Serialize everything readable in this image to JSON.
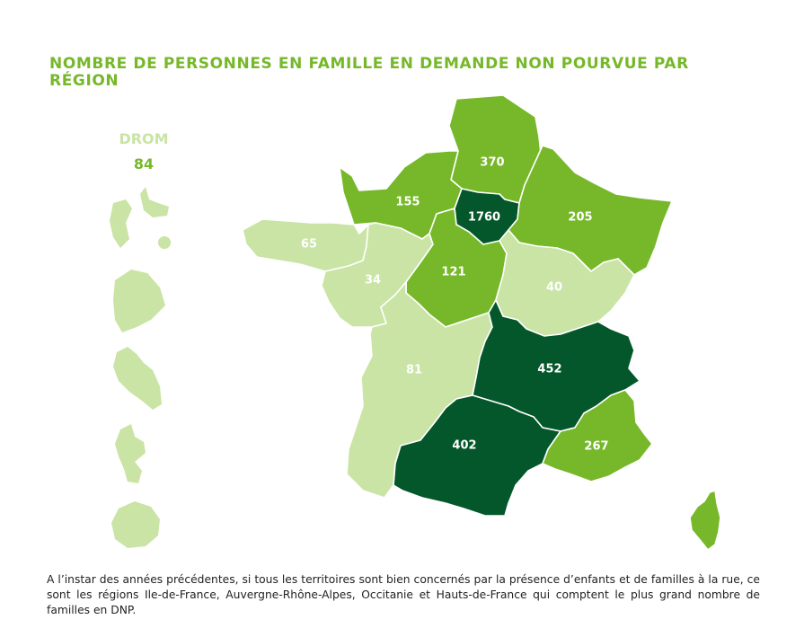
{
  "title": "Nombre de personnes en famille en demande non pourvue par région",
  "drom": {
    "label": "DROM",
    "value": "84"
  },
  "colors": {
    "very_light": "#c9e4a4",
    "medium": "#76b82a",
    "dark": "#03572a",
    "title": "#76b82a",
    "label_text": "#ffffff"
  },
  "regions": [
    {
      "id": "hauts-de-france",
      "value": "370",
      "color": "#76b82a"
    },
    {
      "id": "normandie",
      "value": "155",
      "color": "#76b82a"
    },
    {
      "id": "ile-de-france",
      "value": "1760",
      "color": "#03572a"
    },
    {
      "id": "grand-est",
      "value": "205",
      "color": "#76b82a"
    },
    {
      "id": "bretagne",
      "value": "65",
      "color": "#c9e4a4"
    },
    {
      "id": "pays-de-la-loire",
      "value": "34",
      "color": "#c9e4a4"
    },
    {
      "id": "centre-val-de-loire",
      "value": "121",
      "color": "#76b82a"
    },
    {
      "id": "bourgogne-franche-comte",
      "value": "40",
      "color": "#c9e4a4"
    },
    {
      "id": "nouvelle-aquitaine",
      "value": "81",
      "color": "#c9e4a4"
    },
    {
      "id": "auvergne-rhone-alpes",
      "value": "452",
      "color": "#03572a"
    },
    {
      "id": "occitanie",
      "value": "402",
      "color": "#03572a"
    },
    {
      "id": "provence-alpes-cote-d-azur",
      "value": "267",
      "color": "#76b82a"
    },
    {
      "id": "corse",
      "value": "",
      "color": "#76b82a"
    }
  ],
  "footnote": "A l’instar des années précédentes, si tous les territoires sont bien concernés par la présence d’enfants et de familles à la rue, ce sont les régions Ile-de-France, Auvergne-Rhône-Alpes, Occitanie et Hauts-de-France qui comptent le plus grand nombre de familles en DNP."
}
